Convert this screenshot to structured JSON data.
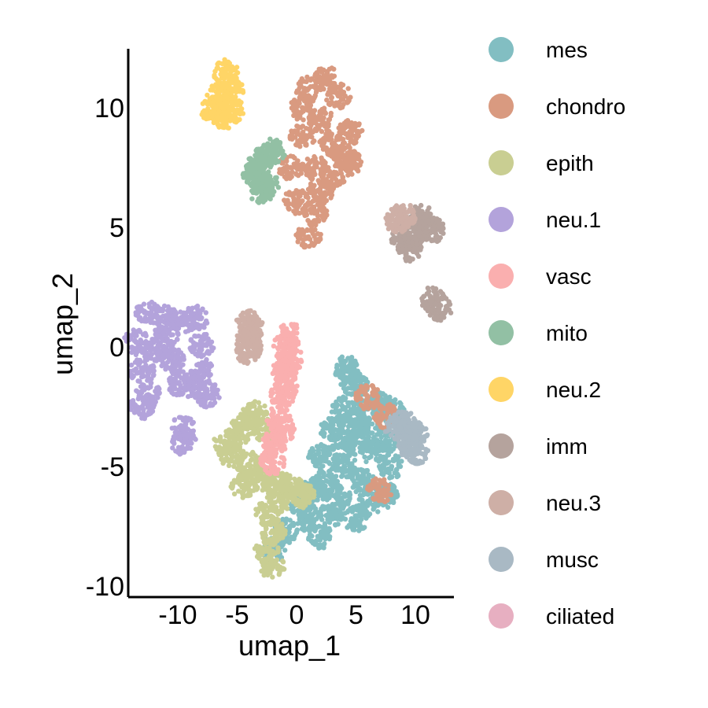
{
  "chart_data": {
    "type": "scatter",
    "title": "",
    "xlabel": "umap_1",
    "ylabel": "umap_2",
    "xlim": [
      -15,
      13.5
    ],
    "ylim": [
      -10.5,
      12.5
    ],
    "xticks": [
      {
        "value": -10,
        "label": "-10"
      },
      {
        "value": -5,
        "label": "-5"
      },
      {
        "value": 0,
        "label": "0"
      },
      {
        "value": 5,
        "label": "5"
      },
      {
        "value": 10,
        "label": "10"
      }
    ],
    "yticks": [
      {
        "value": -10,
        "label": "-10"
      },
      {
        "value": -5,
        "label": "-5"
      },
      {
        "value": 0,
        "label": "0"
      },
      {
        "value": 5,
        "label": "5"
      },
      {
        "value": 10,
        "label": "10"
      }
    ],
    "grid": false,
    "legend_position": "right",
    "series": [
      {
        "name": "mes",
        "color": "#82BEC2",
        "points": [
          [
            -2,
            -8.5
          ],
          [
            -1,
            -7.7
          ],
          [
            1,
            -7.2
          ],
          [
            1.5,
            -6
          ],
          [
            2,
            -4.6
          ],
          [
            3,
            -3.5
          ],
          [
            4,
            -2.6
          ],
          [
            4.5,
            -1.3
          ],
          [
            4.2,
            -0.9
          ],
          [
            5,
            -1.6
          ],
          [
            6,
            -2.6
          ],
          [
            7,
            -2.4
          ],
          [
            8,
            -2.7
          ],
          [
            7.5,
            -3.9
          ],
          [
            8,
            -5
          ],
          [
            7.5,
            -6.2
          ],
          [
            6,
            -6.6
          ],
          [
            5,
            -7.2
          ],
          [
            3,
            -7
          ],
          [
            4,
            -5
          ],
          [
            2.5,
            -5.6
          ],
          [
            3.5,
            -4.2
          ],
          [
            5,
            -4
          ],
          [
            5.5,
            -5.6
          ],
          [
            6.5,
            -4.4
          ],
          [
            0.5,
            -6.6
          ],
          [
            3.5,
            -6.3
          ],
          [
            6,
            -3.5
          ],
          [
            2,
            -7.9
          ],
          [
            4.5,
            -3.2
          ]
        ]
      },
      {
        "name": "chondro",
        "color": "#D99A80",
        "points": [
          [
            0.5,
            10
          ],
          [
            1,
            10.8
          ],
          [
            2.5,
            11.2
          ],
          [
            3.5,
            10.5
          ],
          [
            4.5,
            9
          ],
          [
            4,
            8
          ],
          [
            3,
            7.1
          ],
          [
            2,
            6.5
          ],
          [
            1.5,
            5.6
          ],
          [
            1,
            4.6
          ],
          [
            0,
            6.1
          ],
          [
            -0.5,
            7.5
          ],
          [
            0.5,
            8.8
          ],
          [
            2,
            9.5
          ],
          [
            3,
            8.5
          ],
          [
            4.5,
            7.7
          ],
          [
            1.5,
            7.5
          ],
          [
            6,
            -2.1
          ],
          [
            7.5,
            -2.9
          ],
          [
            7,
            -6
          ]
        ]
      },
      {
        "name": "epith",
        "color": "#C9CE92",
        "points": [
          [
            -4,
            -3.2
          ],
          [
            -5,
            -3.6
          ],
          [
            -6,
            -4.1
          ],
          [
            -5.5,
            -4.5
          ],
          [
            -4,
            -4.9
          ],
          [
            -3,
            -5.2
          ],
          [
            -2,
            -5.7
          ],
          [
            -1,
            -5.8
          ],
          [
            0,
            -6
          ],
          [
            0.5,
            -6.2
          ],
          [
            -1.5,
            -6.4
          ],
          [
            -2.5,
            -7
          ],
          [
            -2,
            -7.7
          ],
          [
            -2.5,
            -8.5
          ],
          [
            -2,
            -9.2
          ],
          [
            -3,
            -5.5
          ],
          [
            -4.5,
            -5.8
          ],
          [
            -3.5,
            -2.8
          ],
          [
            -2.5,
            -3.5
          ]
        ]
      },
      {
        "name": "neu.1",
        "color": "#B3A3DB",
        "points": [
          [
            -13.5,
            0.2
          ],
          [
            -12.5,
            1.4
          ],
          [
            -11,
            1.2
          ],
          [
            -9.5,
            1.1
          ],
          [
            -8.5,
            1.2
          ],
          [
            -8,
            0.1
          ],
          [
            -8,
            -1
          ],
          [
            -8.5,
            -1.7
          ],
          [
            -7.5,
            -2
          ],
          [
            -10,
            -1.5
          ],
          [
            -10.5,
            -0.5
          ],
          [
            -11,
            0.5
          ],
          [
            -12,
            -0.1
          ],
          [
            -13,
            -1
          ],
          [
            -12.5,
            -2
          ],
          [
            -13,
            -2.5
          ],
          [
            -9.5,
            -3.4
          ],
          [
            -9.5,
            -4
          ]
        ]
      },
      {
        "name": "vasc",
        "color": "#FAAFAF",
        "points": [
          [
            -1,
            0
          ],
          [
            -1,
            -1
          ],
          [
            -1.2,
            -2
          ],
          [
            -1.5,
            -3
          ],
          [
            -1.8,
            -4
          ],
          [
            -2,
            -4.8
          ],
          [
            -0.5,
            0.5
          ],
          [
            -0.5,
            -0.5
          ],
          [
            -0.8,
            -1.5
          ],
          [
            -1.2,
            -3.5
          ]
        ]
      },
      {
        "name": "mito",
        "color": "#92C0A4",
        "points": [
          [
            -3.5,
            7.3
          ],
          [
            -3,
            7.7
          ],
          [
            -2.5,
            8
          ],
          [
            -2,
            8.2
          ],
          [
            -2.5,
            6.8
          ],
          [
            -3,
            6.5
          ],
          [
            -3.2,
            7
          ]
        ]
      },
      {
        "name": "neu.2",
        "color": "#FFD566",
        "points": [
          [
            -7,
            9.9
          ],
          [
            -6.5,
            10.5
          ],
          [
            -6,
            11.5
          ],
          [
            -5.5,
            10.8
          ],
          [
            -5.5,
            9.9
          ],
          [
            -6,
            9.6
          ],
          [
            -6.5,
            10.1
          ]
        ]
      },
      {
        "name": "imm",
        "color": "#B5A39D",
        "points": [
          [
            9,
            4.5
          ],
          [
            9.5,
            5
          ],
          [
            10.5,
            5.4
          ],
          [
            11.5,
            4.9
          ],
          [
            9.5,
            4.1
          ],
          [
            10,
            4.6
          ],
          [
            11,
            5.1
          ],
          [
            11.5,
            2
          ],
          [
            12,
            1.6
          ]
        ]
      },
      {
        "name": "neu.3",
        "color": "#CEAFA6",
        "points": [
          [
            -4,
            1
          ],
          [
            -4,
            0.5
          ],
          [
            -4,
            0
          ],
          [
            -4,
            -0.2
          ],
          [
            -3.8,
            0.8
          ],
          [
            8.5,
            5.3
          ],
          [
            9,
            5.5
          ]
        ]
      },
      {
        "name": "musc",
        "color": "#A9B9C4",
        "points": [
          [
            8.5,
            -3.4
          ],
          [
            9,
            -3.2
          ],
          [
            9.5,
            -3.5
          ],
          [
            10,
            -3.7
          ],
          [
            9.5,
            -4.1
          ],
          [
            10,
            -4.4
          ]
        ]
      },
      {
        "name": "ciliated",
        "color": "#E7AFC1",
        "points": []
      }
    ]
  }
}
